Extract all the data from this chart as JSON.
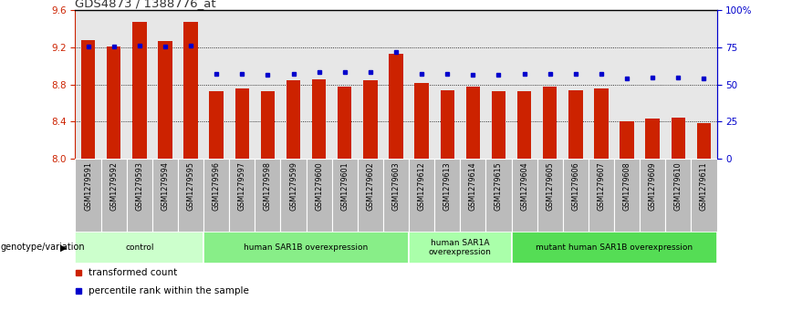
{
  "title": "GDS4873 / 1388776_at",
  "samples": [
    "GSM1279591",
    "GSM1279592",
    "GSM1279593",
    "GSM1279594",
    "GSM1279595",
    "GSM1279596",
    "GSM1279597",
    "GSM1279598",
    "GSM1279599",
    "GSM1279600",
    "GSM1279601",
    "GSM1279602",
    "GSM1279603",
    "GSM1279612",
    "GSM1279613",
    "GSM1279614",
    "GSM1279615",
    "GSM1279604",
    "GSM1279605",
    "GSM1279606",
    "GSM1279607",
    "GSM1279608",
    "GSM1279609",
    "GSM1279610",
    "GSM1279611"
  ],
  "bar_values": [
    9.28,
    9.21,
    9.47,
    9.27,
    9.47,
    8.73,
    8.76,
    8.73,
    8.84,
    8.85,
    8.78,
    8.84,
    9.13,
    8.82,
    8.74,
    8.78,
    8.73,
    8.73,
    8.78,
    8.74,
    8.76,
    8.4,
    8.43,
    8.44,
    8.38
  ],
  "dot_values": [
    9.21,
    9.21,
    9.22,
    9.21,
    9.22,
    8.91,
    8.91,
    8.9,
    8.91,
    8.93,
    8.93,
    8.93,
    9.15,
    8.91,
    8.91,
    8.9,
    8.9,
    8.91,
    8.91,
    8.91,
    8.91,
    8.86,
    8.87,
    8.87,
    8.86
  ],
  "ylim": [
    8.0,
    9.6
  ],
  "left_yticks": [
    8.0,
    8.4,
    8.8,
    9.2,
    9.6
  ],
  "grid_values": [
    8.4,
    8.8,
    9.2
  ],
  "right_yticks": [
    0,
    25,
    50,
    75,
    100
  ],
  "right_yticklabels": [
    "0",
    "25",
    "50",
    "75",
    "100%"
  ],
  "bar_color": "#CC2200",
  "dot_color": "#0000CC",
  "bar_width": 0.55,
  "groups": [
    {
      "label": "control",
      "start": 0,
      "end": 4,
      "color": "#CCFFCC"
    },
    {
      "label": "human SAR1B overexpression",
      "start": 5,
      "end": 12,
      "color": "#88EE88"
    },
    {
      "label": "human SAR1A\noverexpression",
      "start": 13,
      "end": 16,
      "color": "#AAFFAA"
    },
    {
      "label": "mutant human SAR1B overexpression",
      "start": 17,
      "end": 24,
      "color": "#55DD55"
    }
  ],
  "genotype_label": "genotype/variation",
  "legend_items": [
    {
      "label": "transformed count",
      "color": "#CC2200"
    },
    {
      "label": "percentile rank within the sample",
      "color": "#0000CC"
    }
  ],
  "fig_bg_color": "#FFFFFF",
  "plot_bg_color": "#FFFFFF",
  "xtick_bg_color": "#BBBBBB",
  "xtick_sep_color": "#FFFFFF"
}
